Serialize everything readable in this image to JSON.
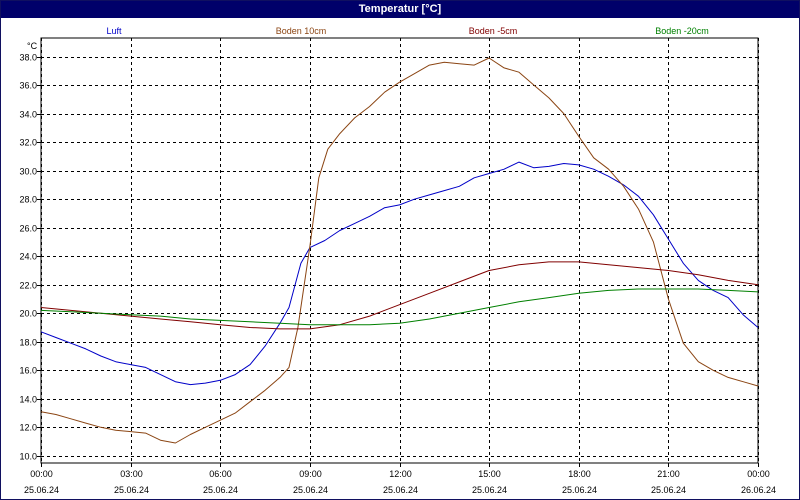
{
  "window": {
    "title": "Temperatur [°C]"
  },
  "colors": {
    "title_bg": "#00006a",
    "grid": "#000000"
  },
  "chart_data": {
    "type": "line",
    "ylabel": "°C",
    "ylim": [
      10.0,
      38.0
    ],
    "ytick_step": 2.0,
    "xlim": [
      0,
      24
    ],
    "grid": "dashed",
    "legend_position": "top",
    "xticks": [
      {
        "x": 0,
        "time": "00:00",
        "date": "25.06.24"
      },
      {
        "x": 3,
        "time": "03:00",
        "date": "25.06.24"
      },
      {
        "x": 6,
        "time": "06:00",
        "date": "25.06.24"
      },
      {
        "x": 9,
        "time": "09:00",
        "date": "25.06.24"
      },
      {
        "x": 12,
        "time": "12:00",
        "date": "25.06.24"
      },
      {
        "x": 15,
        "time": "15:00",
        "date": "25.06.24"
      },
      {
        "x": 18,
        "time": "18:00",
        "date": "25.06.24"
      },
      {
        "x": 21,
        "time": "21:00",
        "date": "25.06.24"
      },
      {
        "x": 24,
        "time": "00:00",
        "date": "26.06.24"
      }
    ],
    "series": [
      {
        "name": "Luft",
        "color": "#0000c8",
        "x": [
          0,
          0.5,
          1,
          1.5,
          2,
          2.5,
          3,
          3.5,
          4,
          4.5,
          5,
          5.5,
          6,
          6.5,
          7,
          7.5,
          8,
          8.3,
          8.7,
          9,
          9.5,
          10,
          10.5,
          11,
          11.5,
          12,
          12.5,
          13,
          13.5,
          14,
          14.5,
          15,
          15.5,
          16,
          16.5,
          17,
          17.5,
          18,
          18.5,
          19,
          19.5,
          20,
          20.5,
          21,
          21.5,
          22,
          22.5,
          23,
          23.5,
          24
        ],
        "y": [
          18.7,
          18.3,
          17.9,
          17.5,
          17.0,
          16.6,
          16.4,
          16.2,
          15.7,
          15.2,
          15.0,
          15.1,
          15.3,
          15.7,
          16.4,
          17.7,
          19.3,
          20.4,
          23.5,
          24.6,
          25.1,
          25.8,
          26.3,
          26.8,
          27.4,
          27.6,
          28.0,
          28.3,
          28.6,
          28.9,
          29.5,
          29.8,
          30.1,
          30.6,
          30.2,
          30.3,
          30.5,
          30.4,
          30.1,
          29.6,
          29.0,
          28.2,
          26.9,
          25.2,
          23.5,
          22.3,
          21.6,
          21.1,
          19.9,
          19.0
        ]
      },
      {
        "name": "Boden 10cm",
        "color": "#8b4513",
        "x": [
          0,
          0.5,
          1,
          1.5,
          2,
          2.5,
          3,
          3.5,
          4,
          4.5,
          5,
          5.5,
          6,
          6.5,
          7,
          7.5,
          8,
          8.3,
          8.6,
          9,
          9.3,
          9.6,
          10,
          10.5,
          11,
          11.5,
          12,
          12.5,
          13,
          13.5,
          14,
          14.5,
          15,
          15.5,
          16,
          16.5,
          17,
          17.5,
          18,
          18.5,
          19,
          19.5,
          20,
          20.5,
          21,
          21.5,
          22,
          22.5,
          23,
          23.5,
          24
        ],
        "y": [
          13.1,
          12.9,
          12.6,
          12.3,
          12.0,
          11.8,
          11.7,
          11.6,
          11.1,
          10.9,
          11.5,
          12.0,
          12.5,
          13.0,
          13.8,
          14.6,
          15.5,
          16.2,
          19.0,
          24.7,
          29.5,
          31.5,
          32.6,
          33.7,
          34.5,
          35.5,
          36.2,
          36.8,
          37.4,
          37.6,
          37.5,
          37.4,
          37.9,
          37.2,
          36.9,
          36.0,
          35.1,
          34.0,
          32.4,
          30.9,
          30.1,
          28.9,
          27.3,
          25.0,
          21.0,
          17.9,
          16.6,
          16.0,
          15.5,
          15.2,
          14.9
        ]
      },
      {
        "name": "Boden -5cm",
        "color": "#800000",
        "x": [
          0,
          1,
          2,
          3,
          4,
          5,
          6,
          7,
          8,
          9,
          10,
          11,
          12,
          13,
          14,
          15,
          16,
          17,
          18,
          19,
          20,
          21,
          22,
          23,
          24
        ],
        "y": [
          20.4,
          20.2,
          20.0,
          19.8,
          19.6,
          19.4,
          19.2,
          19.0,
          18.9,
          18.9,
          19.2,
          19.8,
          20.6,
          21.4,
          22.2,
          23.0,
          23.4,
          23.6,
          23.6,
          23.4,
          23.2,
          23.0,
          22.7,
          22.3,
          22.0
        ]
      },
      {
        "name": "Boden -20cm",
        "color": "#008000",
        "x": [
          0,
          1,
          2,
          3,
          4,
          5,
          6,
          7,
          8,
          9,
          10,
          11,
          12,
          13,
          14,
          15,
          16,
          17,
          18,
          19,
          20,
          21,
          22,
          23,
          24
        ],
        "y": [
          20.2,
          20.1,
          20.0,
          19.9,
          19.8,
          19.6,
          19.5,
          19.4,
          19.3,
          19.2,
          19.2,
          19.2,
          19.3,
          19.6,
          20.0,
          20.4,
          20.8,
          21.1,
          21.4,
          21.6,
          21.7,
          21.7,
          21.7,
          21.6,
          21.5
        ]
      }
    ]
  }
}
